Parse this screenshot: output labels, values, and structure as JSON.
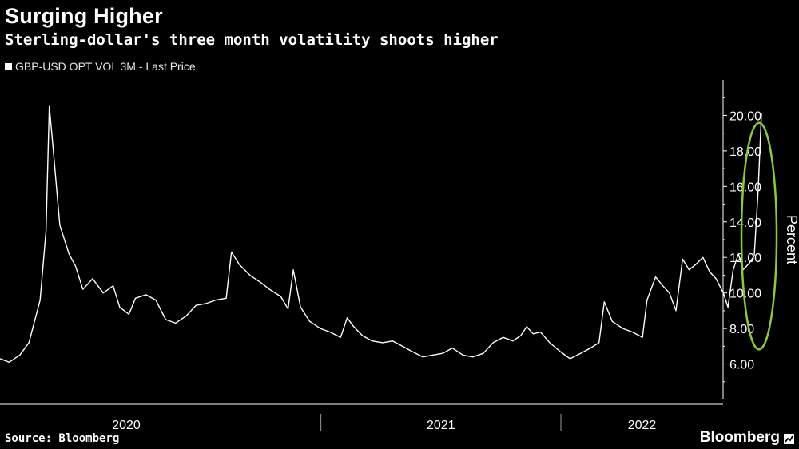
{
  "header": {
    "title": "Surging Higher",
    "subtitle": "Sterling-dollar's three month volatility shoots higher"
  },
  "footer": {
    "source": "Source: Bloomberg",
    "brand": "Bloomberg"
  },
  "colors": {
    "background": "#000000",
    "series": "#ffffff",
    "highlight": "#8dc63f",
    "axis": "#ffffff"
  },
  "chart_data": {
    "type": "line",
    "title": "Surging Higher",
    "subtitle": "Sterling-dollar's three month volatility shoots higher",
    "xlabel": "",
    "ylabel": "Percent",
    "x_range": [
      "2019-09",
      "2022-09"
    ],
    "ylim": [
      4,
      22
    ],
    "y_ticks": [
      "6.00",
      "8.00",
      "10.00",
      "12.00",
      "14.00",
      "16.00",
      "18.00",
      "20.00"
    ],
    "y_tick_values": [
      6,
      8,
      10,
      12,
      14,
      16,
      18,
      20
    ],
    "x_tick_labels": [
      "2020",
      "2021",
      "2022"
    ],
    "grid": false,
    "y_axis_side": "right",
    "legend": "top-left",
    "annotation": "green ellipse highlighting the latest spike",
    "series": [
      {
        "name": "GBP-USD OPT VOL 3M - Last Price",
        "points": [
          [
            "2019-09-01",
            6.3
          ],
          [
            "2019-09-15",
            6.1
          ],
          [
            "2019-10-01",
            6.5
          ],
          [
            "2019-10-15",
            7.2
          ],
          [
            "2019-11-01",
            9.6
          ],
          [
            "2019-11-10",
            13.5
          ],
          [
            "2019-11-15",
            20.5
          ],
          [
            "2019-11-20",
            18.5
          ],
          [
            "2019-12-01",
            13.8
          ],
          [
            "2019-12-15",
            12.2
          ],
          [
            "2019-12-25",
            11.5
          ],
          [
            "2020-01-05",
            10.2
          ],
          [
            "2020-01-20",
            10.8
          ],
          [
            "2020-02-05",
            10.0
          ],
          [
            "2020-02-20",
            10.4
          ],
          [
            "2020-03-01",
            9.2
          ],
          [
            "2020-03-15",
            8.8
          ],
          [
            "2020-03-25",
            9.7
          ],
          [
            "2020-04-10",
            9.9
          ],
          [
            "2020-04-25",
            9.6
          ],
          [
            "2020-05-10",
            8.5
          ],
          [
            "2020-05-25",
            8.3
          ],
          [
            "2020-06-10",
            8.7
          ],
          [
            "2020-06-25",
            9.3
          ],
          [
            "2020-07-10",
            9.4
          ],
          [
            "2020-07-25",
            9.6
          ],
          [
            "2020-08-10",
            9.7
          ],
          [
            "2020-08-18",
            12.3
          ],
          [
            "2020-08-30",
            11.6
          ],
          [
            "2020-09-15",
            11.0
          ],
          [
            "2020-10-01",
            10.6
          ],
          [
            "2020-10-15",
            10.2
          ],
          [
            "2020-11-01",
            9.8
          ],
          [
            "2020-11-12",
            9.1
          ],
          [
            "2020-11-20",
            11.3
          ],
          [
            "2020-12-01",
            9.2
          ],
          [
            "2020-12-15",
            8.4
          ],
          [
            "2020-12-31",
            8.0
          ],
          [
            "2021-01-15",
            7.8
          ],
          [
            "2021-01-31",
            7.5
          ],
          [
            "2021-02-10",
            8.6
          ],
          [
            "2021-02-20",
            8.1
          ],
          [
            "2021-03-05",
            7.6
          ],
          [
            "2021-03-20",
            7.3
          ],
          [
            "2021-04-05",
            7.2
          ],
          [
            "2021-04-20",
            7.3
          ],
          [
            "2021-05-05",
            7.0
          ],
          [
            "2021-05-20",
            6.7
          ],
          [
            "2021-06-05",
            6.4
          ],
          [
            "2021-06-20",
            6.5
          ],
          [
            "2021-07-05",
            6.6
          ],
          [
            "2021-07-20",
            6.9
          ],
          [
            "2021-08-05",
            6.5
          ],
          [
            "2021-08-20",
            6.4
          ],
          [
            "2021-09-05",
            6.6
          ],
          [
            "2021-09-20",
            7.2
          ],
          [
            "2021-10-05",
            7.5
          ],
          [
            "2021-10-20",
            7.3
          ],
          [
            "2021-11-01",
            7.6
          ],
          [
            "2021-11-10",
            8.1
          ],
          [
            "2021-11-20",
            7.7
          ],
          [
            "2021-12-01",
            7.8
          ],
          [
            "2021-12-15",
            7.2
          ],
          [
            "2021-12-31",
            6.7
          ],
          [
            "2022-01-15",
            6.3
          ],
          [
            "2022-01-31",
            6.6
          ],
          [
            "2022-02-15",
            6.9
          ],
          [
            "2022-02-28",
            7.2
          ],
          [
            "2022-03-08",
            9.5
          ],
          [
            "2022-03-20",
            8.4
          ],
          [
            "2022-04-05",
            8.0
          ],
          [
            "2022-04-20",
            7.8
          ],
          [
            "2022-05-05",
            7.5
          ],
          [
            "2022-05-12",
            9.6
          ],
          [
            "2022-05-25",
            10.9
          ],
          [
            "2022-06-05",
            10.4
          ],
          [
            "2022-06-15",
            10.0
          ],
          [
            "2022-06-25",
            9.0
          ],
          [
            "2022-07-05",
            11.9
          ],
          [
            "2022-07-15",
            11.3
          ],
          [
            "2022-07-25",
            11.6
          ],
          [
            "2022-08-05",
            12.0
          ],
          [
            "2022-08-15",
            11.2
          ],
          [
            "2022-08-25",
            10.8
          ],
          [
            "2022-09-05",
            10.0
          ],
          [
            "2022-09-12",
            9.2
          ],
          [
            "2022-09-20",
            11.3
          ],
          [
            "2022-09-28",
            12.2
          ],
          [
            "2022-10-05",
            11.3
          ],
          [
            "2022-10-15",
            11.7
          ],
          [
            "2022-10-22",
            12.1
          ],
          [
            "2022-10-28",
            15.8
          ],
          [
            "2022-11-02",
            20.1
          ]
        ]
      }
    ]
  }
}
